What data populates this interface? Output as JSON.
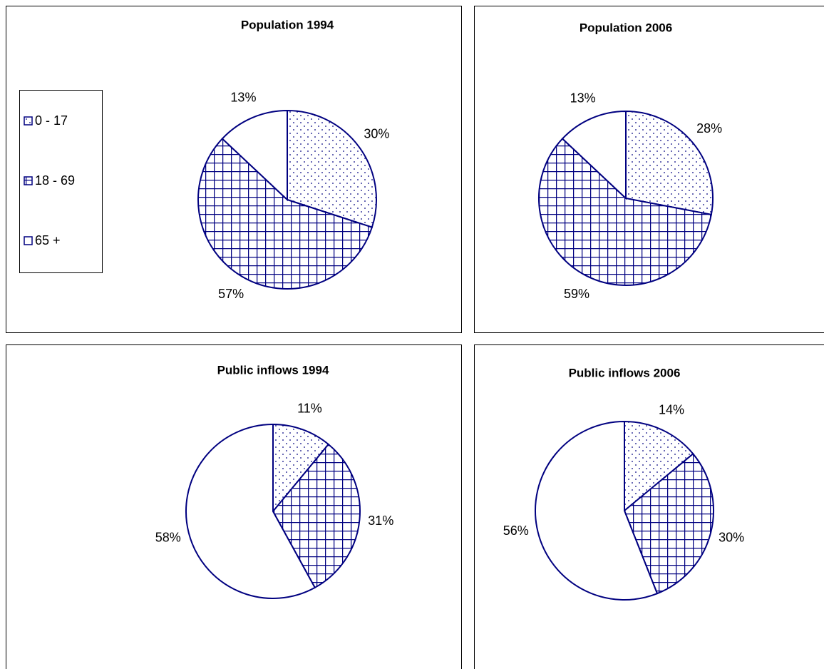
{
  "chart_data": [
    {
      "type": "pie",
      "title": "Population 1994",
      "categories": [
        "0 - 17",
        "18 - 69",
        "65 +"
      ],
      "values": [
        30,
        57,
        13
      ],
      "value_labels": [
        "30%",
        "57%",
        "13%"
      ],
      "fills": [
        "dots",
        "grid",
        "plain"
      ],
      "color": "#000080",
      "legend": "left"
    },
    {
      "type": "pie",
      "title": "Population 2006",
      "values": [
        28,
        59,
        13
      ],
      "value_labels": [
        "28%",
        "59%",
        "13%"
      ],
      "fills": [
        "dots",
        "grid",
        "plain"
      ],
      "color": "#000080"
    },
    {
      "type": "pie",
      "title": "Public inflows 1994",
      "values": [
        11,
        31,
        58
      ],
      "value_labels": [
        "11%",
        "31%",
        "58%"
      ],
      "fills": [
        "dots",
        "grid",
        "plain"
      ],
      "color": "#000080"
    },
    {
      "type": "pie",
      "title": "Public inflows 2006",
      "values": [
        14,
        30,
        56
      ],
      "value_labels": [
        "14%",
        "30%",
        "56%"
      ],
      "fills": [
        "dots",
        "grid",
        "plain"
      ],
      "color": "#000080"
    }
  ]
}
